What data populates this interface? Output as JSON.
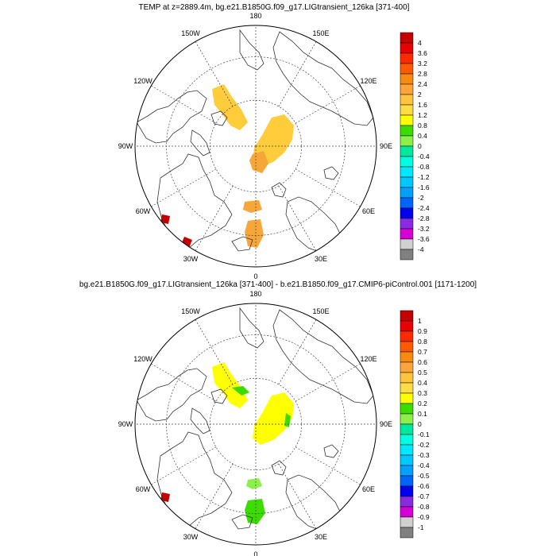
{
  "panels": [
    {
      "title": "TEMP at z=2889.4m, bg.e21.B1850G.f09_g17.LIGtransient_126ka [371-400]",
      "lon_labels": [
        "180",
        "150E",
        "120E",
        "90E",
        "60E",
        "30E",
        "0",
        "30W",
        "60W",
        "90W",
        "120W",
        "150W"
      ],
      "colorbar": {
        "labels": [
          "4",
          "3.6",
          "3.2",
          "2.8",
          "2.4",
          "2",
          "1.6",
          "1.2",
          "0.8",
          "0.4",
          "0",
          "-0.4",
          "-0.8",
          "-1.2",
          "-1.6",
          "-2",
          "-2.4",
          "-2.8",
          "-3.2",
          "-3.6",
          "-4"
        ]
      }
    },
    {
      "title": "bg.e21.B1850G.f09_g17.LIGtransient_126ka [371-400] - b.e21.B1850.f09_g17.CMIP6-piControl.001 [1171-1200]",
      "lon_labels": [
        "180",
        "150E",
        "120E",
        "90E",
        "60E",
        "30E",
        "0",
        "30W",
        "60W",
        "90W",
        "120W",
        "150W"
      ],
      "colorbar": {
        "labels": [
          "1",
          "0.9",
          "0.8",
          "0.7",
          "0.6",
          "0.5",
          "0.4",
          "0.3",
          "0.2",
          "0.1",
          "0",
          "-0.1",
          "-0.2",
          "-0.3",
          "-0.4",
          "-0.5",
          "-0.6",
          "-0.7",
          "-0.8",
          "-0.9",
          "-1"
        ]
      }
    }
  ],
  "colors": {
    "palette": [
      "#c40000",
      "#e60000",
      "#ff2a00",
      "#ff5a00",
      "#f78a10",
      "#ffa53a",
      "#ffc43d",
      "#ffdd44",
      "#ffff00",
      "#3cdc00",
      "#8cf04a",
      "#00e8a0",
      "#00ffe0",
      "#00e8ff",
      "#00c8ff",
      "#00a0ff",
      "#0064ff",
      "#0000f0",
      "#8a2be2",
      "#d400d4",
      "#d0d0d0",
      "#808080"
    ],
    "p1_orange": "#f7a63a",
    "p1_gold": "#ffcc3c",
    "p1_red": "#c40000",
    "p2_yellow": "#ffff00",
    "p2_green": "#3cdc00",
    "p2_lightgreen": "#8cf04a",
    "p2_red": "#c40000"
  }
}
